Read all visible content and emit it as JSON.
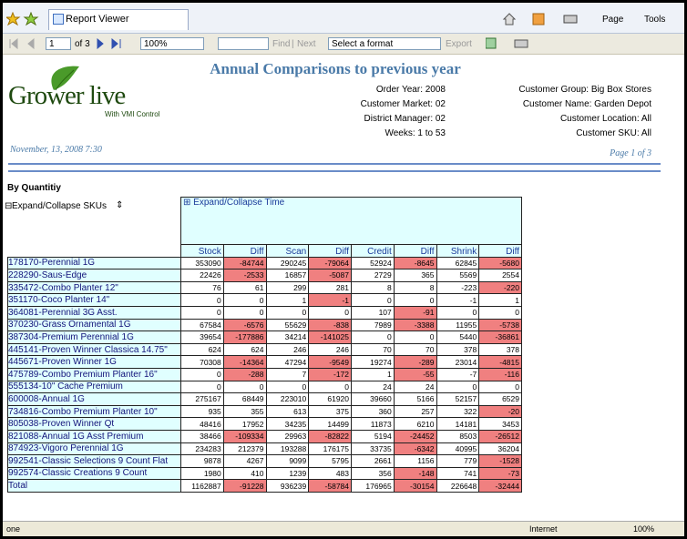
{
  "browser": {
    "tab_title": "Report Viewer",
    "menus": [
      "Page",
      "Tools"
    ],
    "status": "one",
    "zone": "Internet",
    "zoom": "100%"
  },
  "toolbar": {
    "page": "1",
    "page_of": "of 3",
    "zoom": "100%",
    "find": "Find",
    "next": "Next",
    "format": "Select a format",
    "export": "Export"
  },
  "report": {
    "logo": "Grower live",
    "logo_sub": "With VMI Control",
    "title": "Annual Comparisons to previous year",
    "params_left": [
      "Order Year: 2008",
      "Customer Market: 02",
      "District Manager: 02",
      "Weeks: 1 to 53"
    ],
    "params_right": [
      "Customer Group: Big Box Stores",
      "Customer Name: Garden Depot",
      "Customer Location: All",
      "Customer SKU: All"
    ],
    "date": "November, 13, 2008 7:30",
    "page": "Page 1 of 3",
    "section": "By Quantitiy",
    "expand_skus": "Expand/Collapse SKUs",
    "expand_time": "Expand/Collapse Time"
  },
  "table": {
    "columns": [
      "Stock",
      "Diff",
      "Scan",
      "Diff",
      "Credit",
      "Diff",
      "Shrink",
      "Diff"
    ],
    "rows": [
      {
        "label": "178170-Perennial 1G",
        "cells": [
          353090,
          -84744,
          290245,
          -79064,
          52924,
          -8645,
          62845,
          -5680
        ]
      },
      {
        "label": "228290-Saus-Edge",
        "cells": [
          22426,
          -2533,
          16857,
          -5087,
          2729,
          365,
          5569,
          2554
        ]
      },
      {
        "label": "335472-Combo Planter 12\"",
        "cells": [
          76,
          61,
          299,
          281,
          8,
          8,
          -223,
          -220
        ]
      },
      {
        "label": "351170-Coco Planter 14\"",
        "cells": [
          0,
          0,
          1,
          -1,
          0,
          0,
          -1,
          1
        ]
      },
      {
        "label": "364081-Perennial 3G Asst.",
        "cells": [
          0,
          0,
          0,
          0,
          107,
          -91,
          0,
          0
        ]
      },
      {
        "label": "370230-Grass Ornamental 1G",
        "cells": [
          67584,
          -6576,
          55629,
          -838,
          7989,
          -3388,
          11955,
          -5738
        ]
      },
      {
        "label": "387304-Premium Perennial 1G",
        "cells": [
          39654,
          -177886,
          34214,
          -141025,
          0,
          0,
          5440,
          -36861
        ]
      },
      {
        "label": "445141-Proven Winner Classica 14.75\"",
        "cells": [
          624,
          624,
          246,
          246,
          70,
          70,
          378,
          378
        ]
      },
      {
        "label": "445671-Proven Winner 1G",
        "cells": [
          70308,
          -14364,
          47294,
          -9549,
          19274,
          -289,
          23014,
          -4815
        ]
      },
      {
        "label": "475789-Combo Premium Planter 16\"",
        "cells": [
          0,
          -288,
          7,
          -172,
          1,
          -55,
          -7,
          -116
        ]
      },
      {
        "label": "555134-10\" Cache Premium",
        "cells": [
          0,
          0,
          0,
          0,
          24,
          24,
          0,
          0
        ]
      },
      {
        "label": "600008-Annual 1G",
        "cells": [
          275167,
          68449,
          223010,
          61920,
          39660,
          5166,
          52157,
          6529
        ]
      },
      {
        "label": "734816-Combo Premium Planter 10\"",
        "cells": [
          935,
          355,
          613,
          375,
          360,
          257,
          322,
          -20
        ]
      },
      {
        "label": "805038-Proven Winner Qt",
        "cells": [
          48416,
          17952,
          34235,
          14499,
          11873,
          6210,
          14181,
          3453
        ]
      },
      {
        "label": "821088-Annual 1G Asst Premium",
        "cells": [
          38466,
          -109334,
          29963,
          -82822,
          5194,
          -24452,
          8503,
          -26512
        ]
      },
      {
        "label": "874923-Vigoro Perennial 1G",
        "cells": [
          234283,
          212379,
          193288,
          176175,
          33735,
          -6342,
          40995,
          36204
        ]
      },
      {
        "label": "992541-Classic Selections 9 Count Flat",
        "cells": [
          9878,
          4267,
          9099,
          5795,
          2661,
          1156,
          779,
          -1528
        ]
      },
      {
        "label": "992574-Classic Creations 9 Count",
        "cells": [
          1980,
          410,
          1239,
          483,
          356,
          -148,
          741,
          -73
        ]
      },
      {
        "label": "Total",
        "cells": [
          1162887,
          -91228,
          936239,
          -58784,
          176965,
          -30154,
          226648,
          -32444
        ]
      }
    ]
  }
}
